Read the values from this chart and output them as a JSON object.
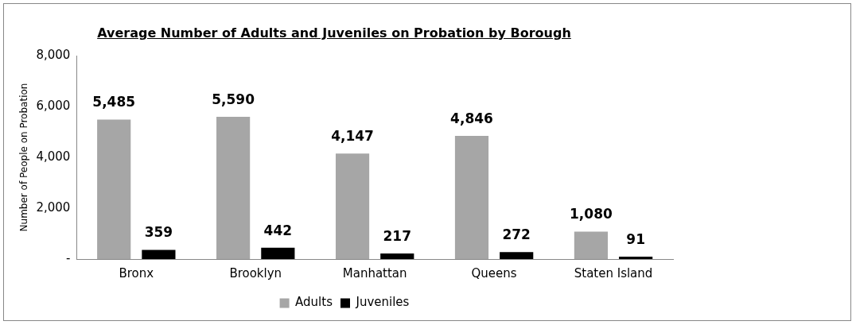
{
  "chart_data": {
    "type": "bar",
    "title": "Average Number of Adults and Juveniles on Probation by Borough",
    "ylabel": "Number of People on Probation",
    "categories": [
      "Bronx",
      "Brooklyn",
      "Manhattan",
      "Queens",
      "Staten Island"
    ],
    "series": [
      {
        "name": "Adults",
        "color": "#a6a6a6",
        "values": [
          5485,
          5590,
          4147,
          4846,
          1080
        ],
        "value_labels": [
          "5,485",
          "5,590",
          "4,147",
          "4,846",
          "1,080"
        ]
      },
      {
        "name": "Juveniles",
        "color": "#000000",
        "values": [
          359,
          442,
          217,
          272,
          91
        ],
        "value_labels": [
          "359",
          "442",
          "217",
          "272",
          "91"
        ]
      }
    ],
    "ylim": [
      0,
      8000
    ],
    "yticks": [
      {
        "value": 0,
        "label": "-"
      },
      {
        "value": 2000,
        "label": "2,000"
      },
      {
        "value": 4000,
        "label": "4,000"
      },
      {
        "value": 6000,
        "label": "6,000"
      },
      {
        "value": 8000,
        "label": "8,000"
      }
    ],
    "grid": false,
    "legend": "bottom"
  }
}
